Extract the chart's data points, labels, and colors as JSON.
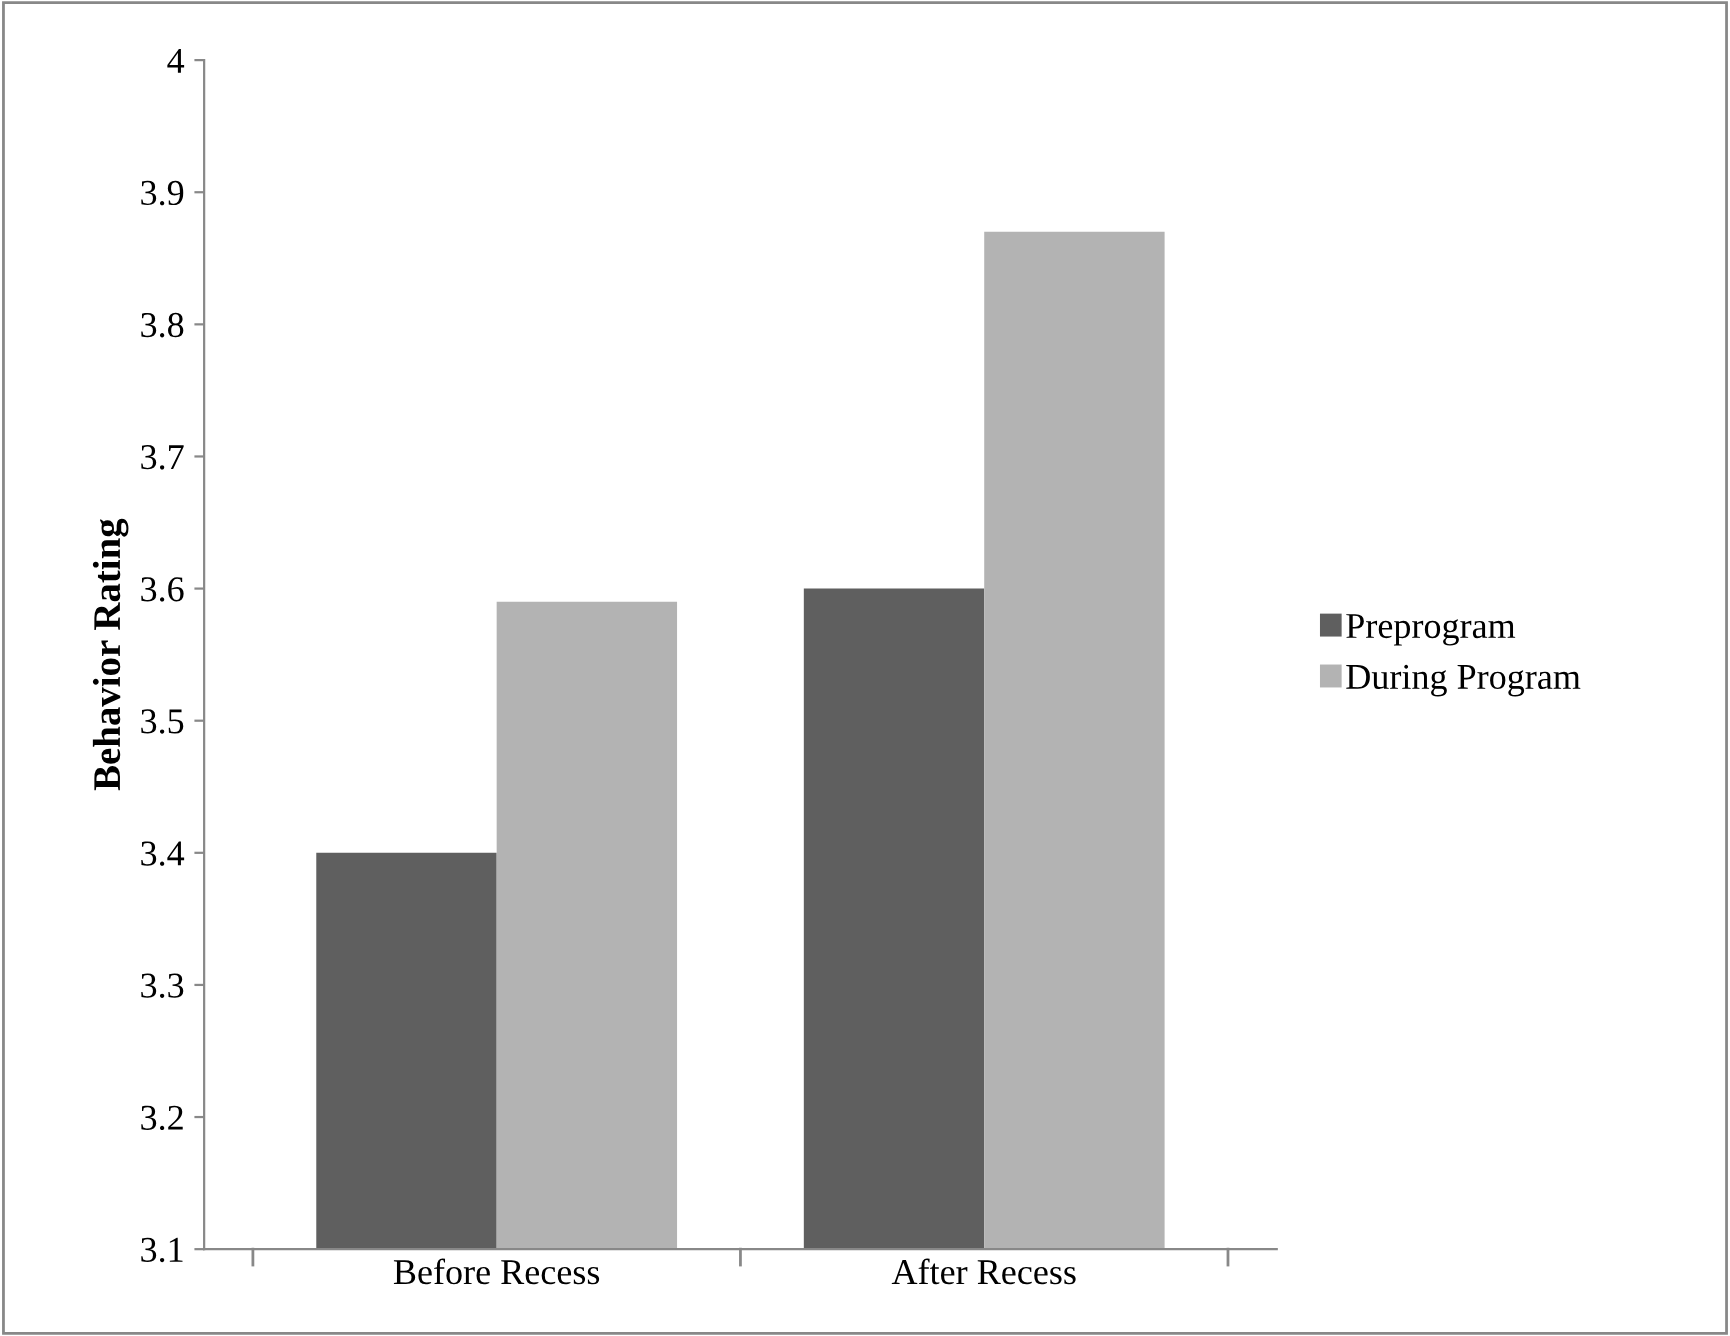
{
  "chart_data": {
    "type": "bar",
    "ylabel": "Behavior Rating",
    "categories": [
      "Before Recess",
      "After Recess"
    ],
    "series": [
      {
        "name": "Preprogram",
        "color": "#5f5f5f",
        "values": [
          3.4,
          3.6
        ]
      },
      {
        "name": "During Program",
        "color": "#b3b3b3",
        "values": [
          3.59,
          3.87
        ]
      }
    ],
    "ylim": [
      3.1,
      4
    ],
    "yticks": [
      3.1,
      3.2,
      3.3,
      3.4,
      3.5,
      3.6,
      3.7,
      3.8,
      3.9,
      4
    ],
    "grid": false,
    "legend": "right"
  }
}
